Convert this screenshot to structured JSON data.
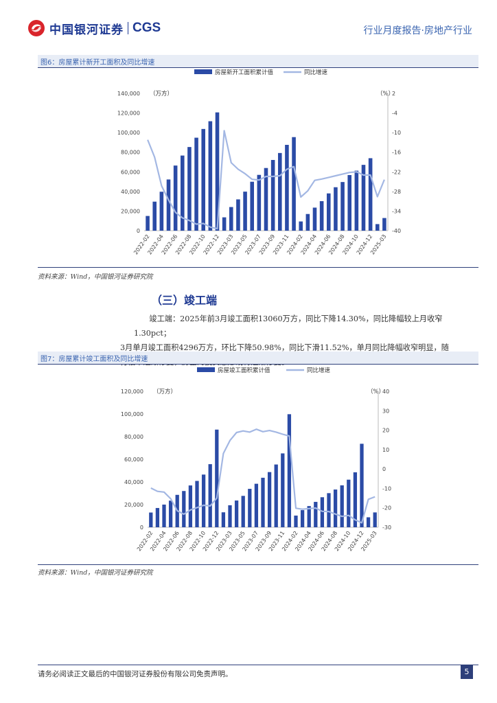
{
  "header": {
    "logo_cn": "中国银河证券",
    "logo_en": "CGS",
    "report_type": "行业月度报告·房地产行业"
  },
  "figure6": {
    "caption": "图6：房屋累计新开工面积及同比增速",
    "source": "资料来源：Wind，中国银河证券研究院"
  },
  "section3": {
    "heading": "（三）竣工端",
    "paragraph_line1": "竣工端：2025年前3月竣工面积13060万方，同比下降14.30%，同比降幅较上月收窄1.30pct；",
    "paragraph_line2": "3月单月竣工面积4296万方，环比下降50.98%，同比下滑11.52%，单月同比降幅收窄明显，随",
    "paragraph_line3": "行楼市逐渐修复，房企的投资意愿或将逐渐修复。"
  },
  "figure7": {
    "caption": "图7：房屋累计竣工面积及同比增速",
    "source": "资料来源：Wind，中国银河证券研究院"
  },
  "footer": {
    "disclaimer": "请务必阅读正文最后的中国银河证券股份有限公司免责声明。",
    "page": "5"
  },
  "colors": {
    "bar": "#2b4ba6",
    "line": "#a3b7e3",
    "brand": "#1f3a93",
    "red": "#d9242b"
  },
  "chart_data": [
    {
      "type": "bar",
      "title": "",
      "left_unit": "（万方）",
      "right_unit": "（%）",
      "legend": [
        "房屋新开工面积累计值",
        "同比增速"
      ],
      "left_ylim": [
        0,
        140000
      ],
      "left_ticks": [
        "0",
        "20,000",
        "40,000",
        "60,000",
        "80,000",
        "100,000",
        "120,000",
        "140,000"
      ],
      "right_ylim": [
        -40,
        2
      ],
      "right_ticks": [
        "-40",
        "-34",
        "-28",
        "-22",
        "-16",
        "-10",
        "-4",
        "2"
      ],
      "x_labels": [
        "2022-02",
        "2022-04",
        "2022-06",
        "2022-08",
        "2022-10",
        "2022-12",
        "2023-03",
        "2023-05",
        "2023-07",
        "2023-09",
        "2023-11",
        "2024-02",
        "2024-04",
        "2024-06",
        "2024-08",
        "2024-10",
        "2024-12",
        "2025-03"
      ],
      "categories": [
        "2022-02",
        "2022-03",
        "2022-04",
        "2022-05",
        "2022-06",
        "2022-07",
        "2022-08",
        "2022-09",
        "2022-10",
        "2022-11",
        "2022-12",
        "2023-02",
        "2023-03",
        "2023-04",
        "2023-05",
        "2023-06",
        "2023-07",
        "2023-08",
        "2023-09",
        "2023-10",
        "2023-11",
        "2023-12",
        "2024-02",
        "2024-03",
        "2024-04",
        "2024-05",
        "2024-06",
        "2024-07",
        "2024-08",
        "2024-09",
        "2024-10",
        "2024-11",
        "2024-12",
        "2025-02",
        "2025-03"
      ],
      "series": [
        {
          "name": "房屋新开工面积累计值",
          "axis": "left",
          "values": [
            15000,
            29600,
            39700,
            52200,
            66400,
            76600,
            85300,
            94800,
            103700,
            111600,
            120600,
            13600,
            24100,
            31900,
            39800,
            49900,
            56900,
            63900,
            72100,
            79200,
            87500,
            95400,
            9400,
            17000,
            23500,
            30100,
            38000,
            44300,
            49600,
            56700,
            61200,
            67100,
            73900,
            6700,
            12900
          ]
        },
        {
          "name": "同比增速",
          "axis": "right",
          "values": [
            -12.2,
            -17.5,
            -26.3,
            -30.6,
            -34.4,
            -36.1,
            -36.9,
            -38.0,
            -37.8,
            -38.9,
            -39.4,
            -9.4,
            -19.2,
            -21.2,
            -22.6,
            -24.3,
            -24.5,
            -23.4,
            -23.4,
            -23.2,
            -21.2,
            -20.4,
            -29.7,
            -27.8,
            -24.6,
            -24.2,
            -23.7,
            -23.2,
            -22.7,
            -22.2,
            -22.0,
            -23.0,
            -23.0,
            -29.6,
            -24.4
          ]
        }
      ],
      "grid": false,
      "legend_position": "top"
    },
    {
      "type": "bar",
      "title": "",
      "left_unit": "（万方）",
      "right_unit": "（%）",
      "legend": [
        "房屋竣工面积累计值",
        "同比增速"
      ],
      "left_ylim": [
        0,
        120000
      ],
      "left_ticks": [
        "0",
        "20,000",
        "40,000",
        "60,000",
        "80,000",
        "100,000",
        "120,000"
      ],
      "right_ylim": [
        -30,
        40
      ],
      "right_ticks": [
        "-30",
        "-20",
        "-10",
        "0",
        "10",
        "20",
        "30",
        "40"
      ],
      "x_labels": [
        "2022-02",
        "2022-04",
        "2022-06",
        "2022-08",
        "2022-10",
        "2022-12",
        "2023-03",
        "2023-05",
        "2023-07",
        "2023-09",
        "2023-11",
        "2024-02",
        "2024-04",
        "2024-06",
        "2024-08",
        "2024-10",
        "2024-12",
        "2025-03"
      ],
      "categories": [
        "2022-02",
        "2022-03",
        "2022-04",
        "2022-05",
        "2022-06",
        "2022-07",
        "2022-08",
        "2022-09",
        "2022-10",
        "2022-11",
        "2022-12",
        "2023-02",
        "2023-03",
        "2023-04",
        "2023-05",
        "2023-06",
        "2023-07",
        "2023-08",
        "2023-09",
        "2023-10",
        "2023-11",
        "2023-12",
        "2024-02",
        "2024-03",
        "2024-04",
        "2024-05",
        "2024-06",
        "2024-07",
        "2024-08",
        "2024-09",
        "2024-10",
        "2024-11",
        "2024-12",
        "2025-02",
        "2025-03"
      ],
      "series": [
        {
          "name": "房屋竣工面积累计值",
          "axis": "left",
          "values": [
            13000,
            17000,
            20000,
            23500,
            28600,
            32000,
            36900,
            40900,
            46500,
            55700,
            86200,
            13200,
            19400,
            23600,
            27700,
            33900,
            38400,
            43700,
            48700,
            55400,
            65200,
            99800,
            10300,
            15100,
            18700,
            22400,
            26500,
            30100,
            33300,
            37000,
            42000,
            48500,
            73700,
            8800,
            13100
          ]
        },
        {
          "name": "同比增速",
          "axis": "right",
          "values": [
            -9.8,
            -11.5,
            -11.9,
            -15.3,
            -21.5,
            -23.3,
            -21.1,
            -19.9,
            -18.7,
            -19.0,
            -15.0,
            8.0,
            14.7,
            18.8,
            19.6,
            19.0,
            20.5,
            19.2,
            19.8,
            19.0,
            17.9,
            17.0,
            -20.2,
            -20.7,
            -20.4,
            -20.1,
            -21.8,
            -21.9,
            -23.2,
            -24.4,
            -23.9,
            -26.2,
            -27.7,
            -15.6,
            -14.3
          ]
        }
      ],
      "grid": false,
      "legend_position": "top"
    }
  ]
}
